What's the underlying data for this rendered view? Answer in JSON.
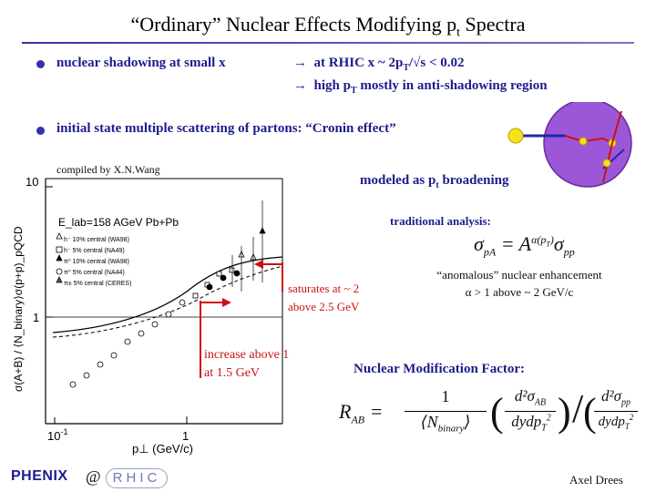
{
  "slide": {
    "title": "“Ordinary” Nuclear Effects Modifying p",
    "title_sub": "t",
    "title_end": " Spectra"
  },
  "bullets": {
    "b1": "nuclear shadowing at small x",
    "b1_r1_a": "at RHIC  x ~ 2p",
    "b1_r1_sub": "T",
    "b1_r1_b": "/√s  < 0.02",
    "b1_r2_a": "high p",
    "b1_r2_sub": "T",
    "b1_r2_b": " mostly in anti-shadowing region",
    "arrow": "→",
    "b2": "initial state multiple scattering of partons:   “Cronin effect”"
  },
  "figure": {
    "credit": "compiled by X.N.Wang",
    "legend_title": "E_lab=158 AGeV Pb+Pb",
    "legend_items": [
      "h⁻ 10% central (WA98)",
      "h⁻ 5% central (NA49)",
      "π⁰ 10% central (WA98)",
      "π⁰ 5% central (NA44)",
      "π± 5% central (CERES)"
    ],
    "ylabel": "σ(A+B) / ⟨N_binary⟩σ(p+p)_pQCD",
    "xlabel": "p⊥ (GeV/c)",
    "ytick_10": "10",
    "ytick_1": "1",
    "xtick_01": "10",
    "xtick_01_exp": "-1",
    "xtick_1": "1"
  },
  "annotations": {
    "modeled_a": "modeled as p",
    "modeled_sub": "t",
    "modeled_b": " broadening",
    "traditional": "traditional analysis:",
    "formula_lhs": "σ",
    "formula_lhs_sub": "pA",
    "formula_eq": " = A",
    "formula_exp": "α(p",
    "formula_exp_sub": "T",
    "formula_exp_end": ")",
    "formula_rhs": "σ",
    "formula_rhs_sub": "pp",
    "anomalous_1": "“anomalous” nuclear enhancement",
    "anomalous_2": "α > 1  above ~ 2 GeV/c",
    "saturates_1": "saturates at ~ 2",
    "saturates_2": "above 2.5 GeV",
    "increase_1": "increase above 1",
    "increase_2": "at 1.5 GeV",
    "nmf": "Nuclear Modification Factor:",
    "raa_lhs": "R",
    "raa_lhs_sub": "AB",
    "raa_eq": " = ",
    "raa_one": "1",
    "raa_nbin": "N",
    "raa_nbin_sub": "binary",
    "raa_num_ab": "d²σ",
    "raa_num_ab_sub": "AB",
    "raa_den": "dydp",
    "raa_den_sub": "T",
    "raa_den_sup": "2",
    "raa_num_pp": "d²σ",
    "raa_num_pp_sub": "pp"
  },
  "footer": {
    "logo_phenix": "PHENIX",
    "at": "@",
    "logo_rhic": "RHIC",
    "author": "Axel Drees"
  }
}
